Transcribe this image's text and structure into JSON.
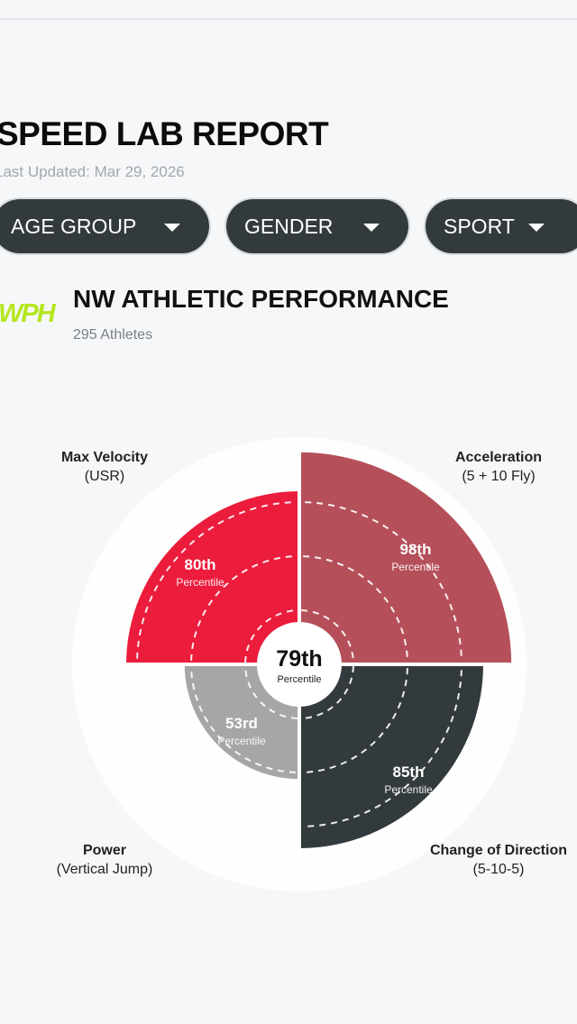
{
  "report": {
    "title": "SPEED LAB REPORT",
    "last_updated": "Last Updated: Mar 29, 2026"
  },
  "filters": [
    {
      "label": "AGE GROUP"
    },
    {
      "label": "GENDER"
    },
    {
      "label": "SPORT"
    }
  ],
  "organization": {
    "logo_text": "WPH",
    "name": "NW ATHLETIC PERFORMANCE",
    "athletes": "295 Athletes"
  },
  "colors": {
    "max_velocity": "#ec1c3c",
    "acceleration": "#b5505a",
    "power": "#a6a6a6",
    "change_of_direction": "#333a3d",
    "pill": "#333a3d",
    "logo": "#b5e61d"
  },
  "chart_data": {
    "type": "polar-area",
    "center": {
      "value": "79th",
      "caption": "Percentile"
    },
    "segments": [
      {
        "name": "Max Velocity",
        "subtitle": "(USR)",
        "value": 80,
        "display": "80th",
        "caption": "Percentile",
        "quadrant": "top-left",
        "color_key": "max_velocity"
      },
      {
        "name": "Acceleration",
        "subtitle": "(5 + 10 Fly)",
        "value": 98,
        "display": "98th",
        "caption": "Percentile",
        "quadrant": "top-right",
        "color_key": "acceleration"
      },
      {
        "name": "Change of Direction",
        "subtitle": "(5-10-5)",
        "value": 85,
        "display": "85th",
        "caption": "Percentile",
        "quadrant": "bottom-right",
        "color_key": "change_of_direction"
      },
      {
        "name": "Power",
        "subtitle": "(Vertical Jump)",
        "value": 53,
        "display": "53rd",
        "caption": "Percentile",
        "quadrant": "bottom-left",
        "color_key": "power"
      }
    ],
    "scale_max": 100
  }
}
